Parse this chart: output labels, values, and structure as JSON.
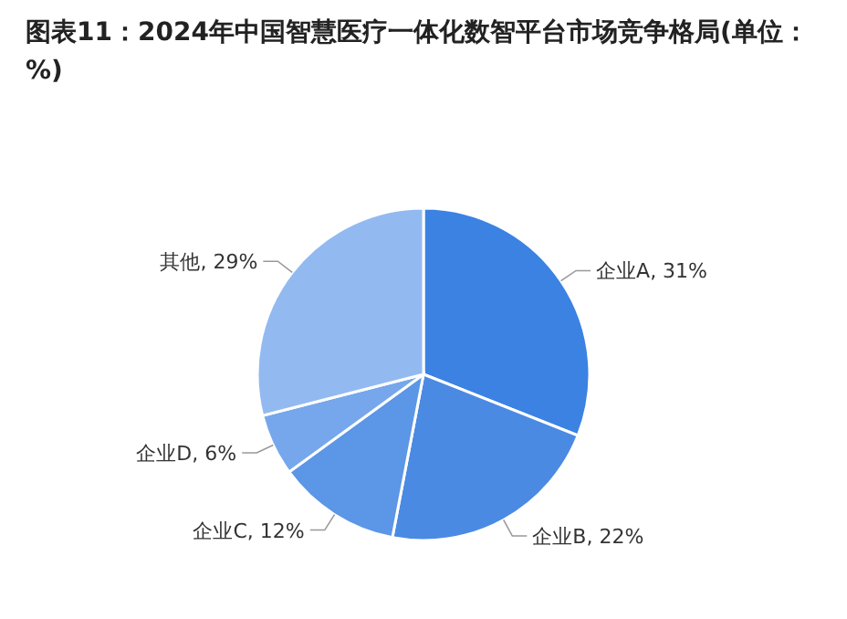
{
  "chart_data": {
    "type": "pie",
    "title": "图表11：2024年中国智慧医疗一体化数智平台市场竞争格局(单位：%)",
    "categories": [
      "企业A",
      "企业B",
      "企业C",
      "企业D",
      "其他"
    ],
    "values": [
      31,
      22,
      12,
      6,
      29
    ],
    "colors": [
      "#3b82e3",
      "#4a8ae3",
      "#5c96e6",
      "#76a7ec",
      "#92baf1"
    ],
    "value_labels": [
      ", 31%",
      ", 22%",
      ", 12%",
      ", 6%",
      ", 29%"
    ]
  }
}
